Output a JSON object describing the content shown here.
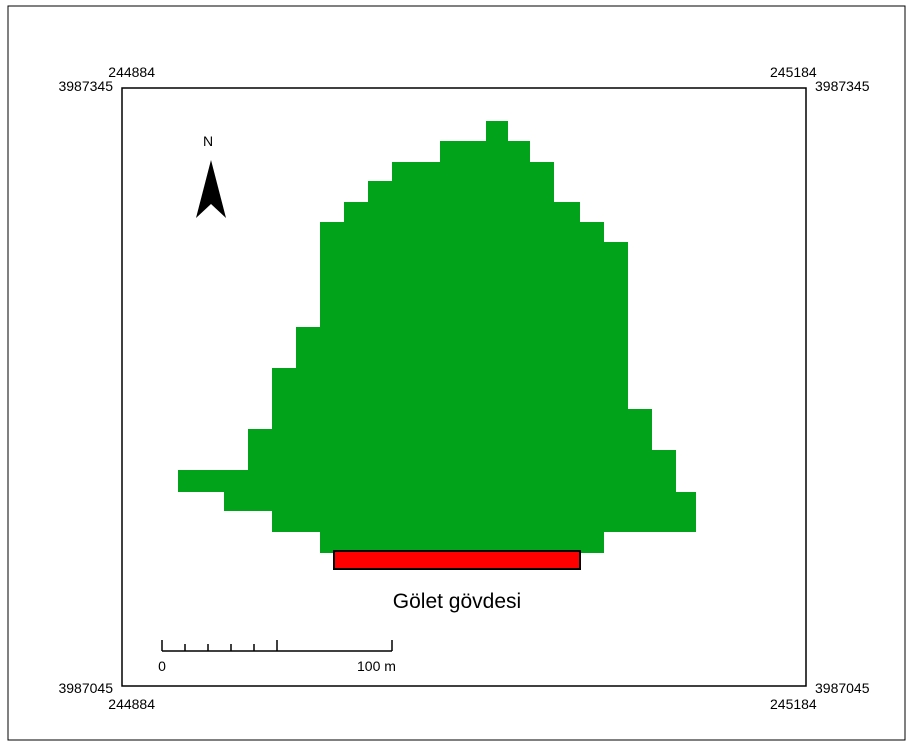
{
  "corners": {
    "top_left": {
      "easting": "244884",
      "northing": "3987345"
    },
    "top_right": {
      "easting": "245184",
      "northing": "3987345"
    },
    "bottom_left": {
      "easting": "244884",
      "northing": "3987045"
    },
    "bottom_right": {
      "easting": "245184",
      "northing": "3987045"
    }
  },
  "north_arrow": {
    "label": "N"
  },
  "feature": {
    "label": "Gölet gövdesi"
  },
  "scale_bar": {
    "start_label": "0",
    "end_label": "100 m"
  }
}
